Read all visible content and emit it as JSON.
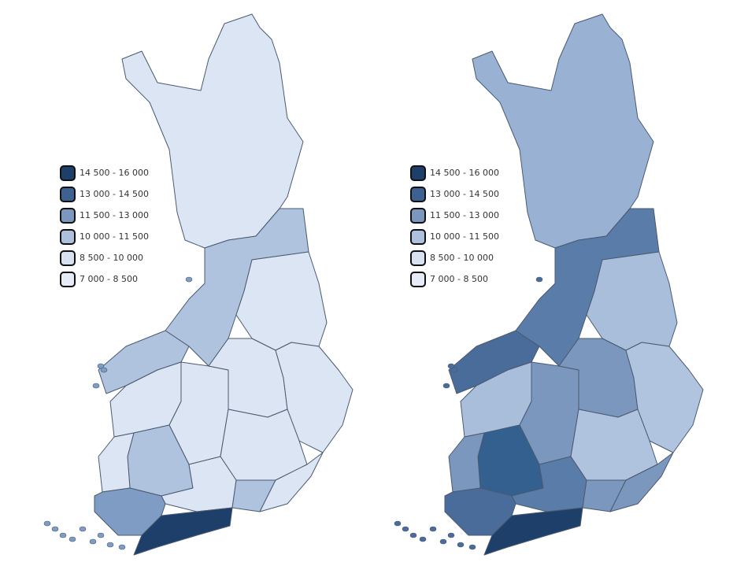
{
  "maps": [
    {
      "legend": [
        {
          "label": "14 500 - 16 000",
          "color": "#1f3f6b"
        },
        {
          "label": "13 000 - 14 500",
          "color": "#3d6291"
        },
        {
          "label": "11 500 - 13 000",
          "color": "#7b97be"
        },
        {
          "label": "10 000 - 11 500",
          "color": "#adc1dd"
        },
        {
          "label": "8 500 - 10 000",
          "color": "#d7e1f0"
        },
        {
          "label": "7 000 - 8 500",
          "color": "#e6ecf6"
        }
      ]
    },
    {
      "legend": [
        {
          "label": "14 500 - 16 000",
          "color": "#1f3f6b"
        },
        {
          "label": "13 000 - 14 500",
          "color": "#3d6291"
        },
        {
          "label": "11 500 - 13 000",
          "color": "#7b97be"
        },
        {
          "label": "10 000 - 11 500",
          "color": "#adc1dd"
        },
        {
          "label": "8 500 - 10 000",
          "color": "#d7e1f0"
        },
        {
          "label": "7 000 - 8 500",
          "color": "#e6ecf6"
        }
      ]
    }
  ]
}
